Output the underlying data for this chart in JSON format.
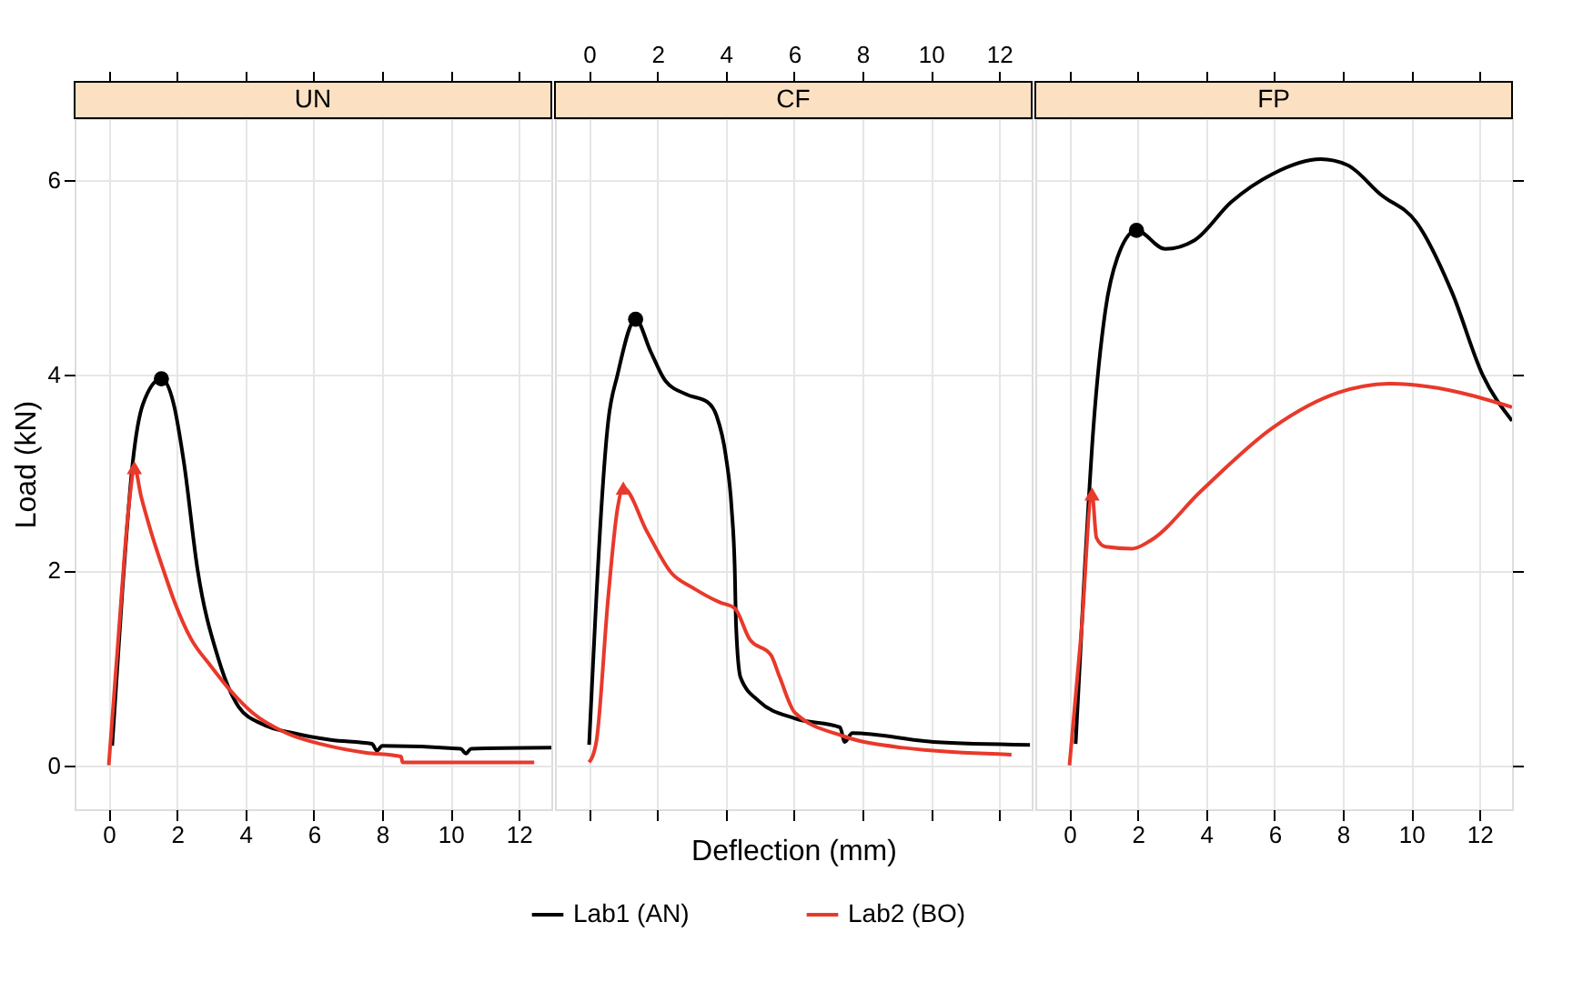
{
  "chart_data": [
    {
      "type": "line",
      "title": "UN",
      "ylabel": "Load (kN)",
      "grid": true,
      "legend": "bottom",
      "xlim": [
        -1,
        12.95
      ],
      "ylim": [
        -0.45,
        6.63
      ],
      "xticks": [
        0,
        2,
        4,
        6,
        8,
        10,
        12
      ],
      "yticks": [
        0,
        2,
        4,
        6
      ],
      "series": [
        {
          "name": "Lab1 (AN)",
          "color": "#000000",
          "x": [
            0.1,
            0.4,
            0.7,
            1.0,
            1.54,
            1.9,
            2.2,
            2.6,
            3.2,
            3.8,
            4.5,
            5.4,
            6.5,
            7.7,
            7.85,
            8.0,
            10.3,
            10.45,
            10.6,
            12.95
          ],
          "values": [
            0.2,
            1.8,
            3.1,
            3.7,
            3.96,
            3.7,
            3.1,
            2.0,
            1.1,
            0.6,
            0.42,
            0.33,
            0.26,
            0.22,
            0.15,
            0.2,
            0.17,
            0.12,
            0.17,
            0.18
          ]
        },
        {
          "name": "Lab2 (BO)",
          "color": "#e8392b",
          "x": [
            0,
            0.3,
            0.6,
            0.75,
            0.95,
            1.23,
            1.6,
            1.93,
            2.4,
            2.98,
            3.6,
            4.2,
            5.2,
            6.3,
            7.5,
            8.55,
            8.6,
            12.45
          ],
          "values": [
            0,
            1.4,
            2.7,
            3.05,
            2.75,
            2.4,
            2.0,
            1.67,
            1.3,
            1.02,
            0.75,
            0.54,
            0.33,
            0.21,
            0.13,
            0.09,
            0.03,
            0.03
          ]
        },
        {
          "type": "scatter",
          "marker": "circle",
          "color": "#000000",
          "x": [
            1.54
          ],
          "values": [
            3.96
          ]
        },
        {
          "type": "scatter",
          "marker": "triangle",
          "color": "#e8392b",
          "x": [
            0.75
          ],
          "values": [
            3.05
          ]
        }
      ]
    },
    {
      "type": "line",
      "title": "CF",
      "xlabel": "Deflection (mm)",
      "grid": true,
      "tick_labels": "x",
      "xlim": [
        -1,
        12.95
      ],
      "ylim": [
        -0.45,
        6.63
      ],
      "xticks": [
        0,
        2,
        4,
        6,
        8,
        10,
        12
      ],
      "yticks": [
        {
          "value": 0,
          "label": null
        },
        {
          "value": 2,
          "label": null
        },
        {
          "value": 4,
          "label": null
        },
        {
          "value": 6,
          "label": null
        }
      ],
      "series": [
        {
          "name": "Lab1 (AN)",
          "color": "#000000",
          "x": [
            0,
            0.56,
            0.83,
            1.36,
            1.8,
            2.23,
            2.85,
            3.47,
            3.73,
            4.0,
            4.17,
            4.26,
            4.3,
            4.43,
            4.96,
            6.02,
            7.34,
            7.48,
            7.7,
            10.07,
            12.9
          ],
          "values": [
            0.21,
            3.53,
            4.0,
            4.57,
            4.24,
            3.94,
            3.8,
            3.72,
            3.58,
            3.17,
            2.63,
            2.03,
            1.43,
            0.9,
            0.66,
            0.48,
            0.39,
            0.24,
            0.33,
            0.24,
            0.21
          ]
        },
        {
          "name": "Lab2 (BO)",
          "color": "#e8392b",
          "x": [
            0,
            0.21,
            0.56,
            0.83,
            1.0,
            1.7,
            2.41,
            3.03,
            3.82,
            4.26,
            4.7,
            5.32,
            5.58,
            6.02,
            7.43,
            9.19,
            12.36
          ],
          "values": [
            0.03,
            0.24,
            1.73,
            2.63,
            2.84,
            2.39,
            1.97,
            1.82,
            1.67,
            1.61,
            1.29,
            1.13,
            0.9,
            0.54,
            0.3,
            0.18,
            0.11
          ]
        },
        {
          "type": "scatter",
          "marker": "circle",
          "color": "#000000",
          "x": [
            1.36
          ],
          "values": [
            4.57
          ]
        },
        {
          "type": "scatter",
          "marker": "triangle",
          "color": "#e8392b",
          "x": [
            1.0
          ],
          "values": [
            2.84
          ]
        }
      ]
    },
    {
      "type": "line",
      "title": "FP",
      "grid": true,
      "tick_labels": "x",
      "xlim": [
        -1,
        12.95
      ],
      "ylim": [
        -0.45,
        6.63
      ],
      "xticks": [
        0,
        2,
        4,
        6,
        8,
        10,
        12
      ],
      "yticks": [
        {
          "value": 0,
          "label": null
        },
        {
          "value": 2,
          "label": null
        },
        {
          "value": 4,
          "label": null
        },
        {
          "value": 6,
          "label": null
        }
      ],
      "series": [
        {
          "name": "Lab1 (AN)",
          "color": "#000000",
          "x": [
            0.18,
            0.44,
            0.7,
            1.05,
            1.4,
            1.96,
            2.8,
            3.66,
            4.73,
            5.95,
            7.35,
            8.13,
            9.1,
            10.16,
            11.2,
            12.09,
            12.95
          ],
          "values": [
            0.22,
            1.97,
            3.46,
            4.66,
            5.2,
            5.48,
            5.29,
            5.38,
            5.77,
            6.06,
            6.21,
            6.15,
            5.85,
            5.56,
            4.84,
            4.0,
            3.53
          ]
        },
        {
          "name": "Lab2 (BO)",
          "color": "#e8392b",
          "x": [
            0,
            0.35,
            0.66,
            0.79,
            1.05,
            1.84,
            2.36,
            3.85,
            5.95,
            7.88,
            9.45,
            10.5,
            12.95
          ],
          "values": [
            0,
            1.38,
            2.78,
            2.33,
            2.24,
            2.22,
            2.3,
            2.81,
            3.46,
            3.82,
            3.91,
            3.88,
            3.67
          ]
        },
        {
          "type": "scatter",
          "marker": "circle",
          "color": "#000000",
          "x": [
            1.96
          ],
          "values": [
            5.48
          ]
        },
        {
          "type": "scatter",
          "marker": "triangle",
          "color": "#e8392b",
          "x": [
            0.66
          ],
          "values": [
            2.78
          ]
        }
      ]
    }
  ]
}
